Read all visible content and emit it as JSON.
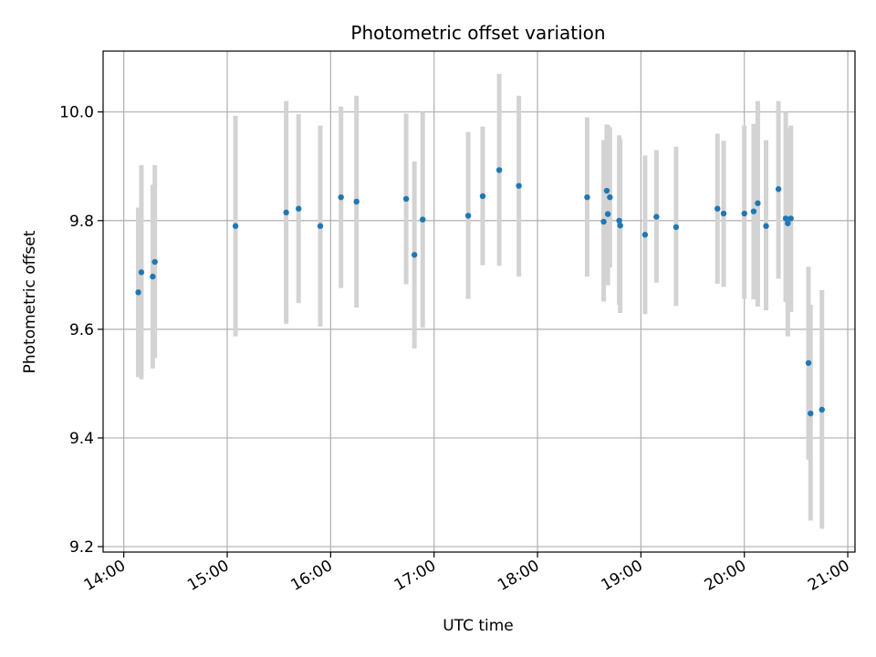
{
  "chart_data": {
    "type": "scatter",
    "title": "Photometric offset variation",
    "xlabel": "UTC time",
    "ylabel": "Photometric offset",
    "grid": true,
    "xlim": [
      13.8,
      21.07
    ],
    "ylim": [
      9.19,
      10.112
    ],
    "x_ticks": [
      {
        "value": 14,
        "label": "14:00"
      },
      {
        "value": 15,
        "label": "15:00"
      },
      {
        "value": 16,
        "label": "16:00"
      },
      {
        "value": 17,
        "label": "17:00"
      },
      {
        "value": 18,
        "label": "18:00"
      },
      {
        "value": 19,
        "label": "19:00"
      },
      {
        "value": 20,
        "label": "20:00"
      },
      {
        "value": 21,
        "label": "21:00"
      }
    ],
    "y_ticks": [
      {
        "value": 9.2,
        "label": "9.2"
      },
      {
        "value": 9.4,
        "label": "9.4"
      },
      {
        "value": 9.6,
        "label": "9.6"
      },
      {
        "value": 9.8,
        "label": "9.8"
      },
      {
        "value": 10.0,
        "label": "10.0"
      }
    ],
    "colors": {
      "marker": "#1f77b4",
      "errorbar": "#d3d3d3",
      "grid": "#b0b0b0",
      "axis": "#000000"
    },
    "points": [
      {
        "time": "14:08",
        "x": 14.14,
        "y": 9.668,
        "ylow": 9.512,
        "yhigh": 9.824
      },
      {
        "time": "14:10",
        "x": 14.17,
        "y": 9.705,
        "ylow": 9.508,
        "yhigh": 9.902
      },
      {
        "time": "14:17",
        "x": 14.28,
        "y": 9.697,
        "ylow": 9.528,
        "yhigh": 9.866
      },
      {
        "time": "14:18",
        "x": 14.3,
        "y": 9.724,
        "ylow": 9.547,
        "yhigh": 9.902
      },
      {
        "time": "15:05",
        "x": 15.08,
        "y": 9.79,
        "ylow": 9.587,
        "yhigh": 9.993
      },
      {
        "time": "15:34",
        "x": 15.57,
        "y": 9.815,
        "ylow": 9.61,
        "yhigh": 10.02
      },
      {
        "time": "15:41",
        "x": 15.69,
        "y": 9.822,
        "ylow": 9.648,
        "yhigh": 9.996
      },
      {
        "time": "15:54",
        "x": 15.9,
        "y": 9.79,
        "ylow": 9.605,
        "yhigh": 9.975
      },
      {
        "time": "16:06",
        "x": 16.1,
        "y": 9.843,
        "ylow": 9.676,
        "yhigh": 10.01
      },
      {
        "time": "16:15",
        "x": 16.25,
        "y": 9.835,
        "ylow": 9.64,
        "yhigh": 10.03
      },
      {
        "time": "16:44",
        "x": 16.73,
        "y": 9.84,
        "ylow": 9.683,
        "yhigh": 9.997
      },
      {
        "time": "16:49",
        "x": 16.81,
        "y": 9.737,
        "ylow": 9.565,
        "yhigh": 9.909
      },
      {
        "time": "16:53",
        "x": 16.89,
        "y": 9.802,
        "ylow": 9.603,
        "yhigh": 10.0
      },
      {
        "time": "17:20",
        "x": 17.33,
        "y": 9.809,
        "ylow": 9.656,
        "yhigh": 9.963
      },
      {
        "time": "17:28",
        "x": 17.47,
        "y": 9.845,
        "ylow": 9.718,
        "yhigh": 9.973
      },
      {
        "time": "17:38",
        "x": 17.63,
        "y": 9.893,
        "ylow": 9.717,
        "yhigh": 10.07
      },
      {
        "time": "17:49",
        "x": 17.82,
        "y": 9.864,
        "ylow": 9.697,
        "yhigh": 10.03
      },
      {
        "time": "18:29",
        "x": 18.48,
        "y": 9.843,
        "ylow": 9.697,
        "yhigh": 9.99
      },
      {
        "time": "18:38",
        "x": 18.64,
        "y": 9.798,
        "ylow": 9.651,
        "yhigh": 9.948
      },
      {
        "time": "18:40",
        "x": 18.67,
        "y": 9.855,
        "ylow": 9.72,
        "yhigh": 9.977
      },
      {
        "time": "18:41",
        "x": 18.68,
        "y": 9.812,
        "ylow": 9.681,
        "yhigh": 9.976
      },
      {
        "time": "18:42",
        "x": 18.7,
        "y": 9.843,
        "ylow": 9.714,
        "yhigh": 9.972
      },
      {
        "time": "18:47",
        "x": 18.79,
        "y": 9.8,
        "ylow": 9.645,
        "yhigh": 9.957
      },
      {
        "time": "18:48",
        "x": 18.8,
        "y": 9.791,
        "ylow": 9.63,
        "yhigh": 9.95
      },
      {
        "time": "19:02",
        "x": 19.04,
        "y": 9.774,
        "ylow": 9.628,
        "yhigh": 9.92
      },
      {
        "time": "19:09",
        "x": 19.15,
        "y": 9.807,
        "ylow": 9.686,
        "yhigh": 9.93
      },
      {
        "time": "19:20",
        "x": 19.34,
        "y": 9.788,
        "ylow": 9.643,
        "yhigh": 9.936
      },
      {
        "time": "19:44",
        "x": 19.74,
        "y": 9.822,
        "ylow": 9.684,
        "yhigh": 9.96
      },
      {
        "time": "19:48",
        "x": 19.8,
        "y": 9.813,
        "ylow": 9.678,
        "yhigh": 9.947
      },
      {
        "time": "20:00",
        "x": 20.0,
        "y": 9.813,
        "ylow": 9.656,
        "yhigh": 9.975
      },
      {
        "time": "20:05",
        "x": 20.09,
        "y": 9.817,
        "ylow": 9.655,
        "yhigh": 9.978
      },
      {
        "time": "20:08",
        "x": 20.13,
        "y": 9.832,
        "ylow": 9.642,
        "yhigh": 10.02
      },
      {
        "time": "20:13",
        "x": 20.21,
        "y": 9.79,
        "ylow": 9.635,
        "yhigh": 9.948
      },
      {
        "time": "20:20",
        "x": 20.33,
        "y": 9.858,
        "ylow": 9.693,
        "yhigh": 10.02
      },
      {
        "time": "20:24",
        "x": 20.4,
        "y": 9.804,
        "ylow": 9.65,
        "yhigh": 10.0
      },
      {
        "time": "20:25",
        "x": 20.42,
        "y": 9.795,
        "ylow": 9.587,
        "yhigh": 9.97
      },
      {
        "time": "20:27",
        "x": 20.45,
        "y": 9.804,
        "ylow": 9.632,
        "yhigh": 9.975
      },
      {
        "time": "20:37",
        "x": 20.62,
        "y": 9.538,
        "ylow": 9.36,
        "yhigh": 9.715
      },
      {
        "time": "20:38",
        "x": 20.64,
        "y": 9.445,
        "ylow": 9.248,
        "yhigh": 9.645
      },
      {
        "time": "20:45",
        "x": 20.75,
        "y": 9.452,
        "ylow": 9.233,
        "yhigh": 9.672
      }
    ]
  }
}
